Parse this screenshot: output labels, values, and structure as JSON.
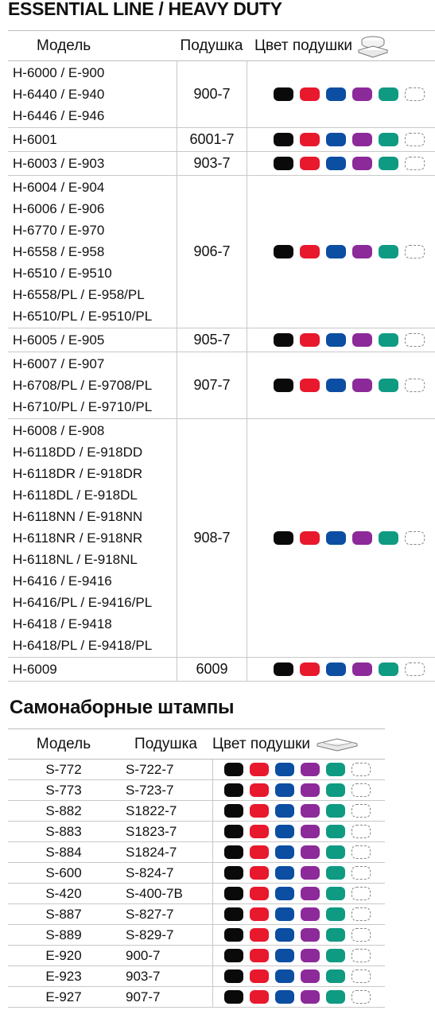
{
  "section1": {
    "title": "ESSENTIAL LINE / HEAVY DUTY",
    "headers": {
      "model": "Модель",
      "pad": "Подушка",
      "color": "Цвет подушки"
    },
    "pad_icon": "stamp-pad-icon",
    "rows": [
      {
        "models": [
          "H-6000 / E-900",
          "H-6440 / E-940",
          "H-6446 / E-946"
        ],
        "pad": "900-7"
      },
      {
        "models": [
          "H-6001"
        ],
        "pad": "6001-7"
      },
      {
        "models": [
          "H-6003 / E-903"
        ],
        "pad": "903-7"
      },
      {
        "models": [
          "H-6004 / E-904",
          "H-6006 / E-906",
          "H-6770 / E-970",
          "H-6558 / E-958",
          "H-6510 / E-9510",
          "H-6558/PL / E-958/PL",
          "H-6510/PL / E-9510/PL"
        ],
        "pad": "906-7"
      },
      {
        "models": [
          "H-6005 / E-905"
        ],
        "pad": "905-7"
      },
      {
        "models": [
          "H-6007 / E-907",
          "H-6708/PL / E-9708/PL",
          "H-6710/PL / E-9710/PL"
        ],
        "pad": "907-7"
      },
      {
        "models": [
          "H-6008 / E-908",
          "H-6118DD / E-918DD",
          "H-6118DR / E-918DR",
          "H-6118DL / E-918DL",
          "H-6118NN / E-918NN",
          "H-6118NR / E-918NR",
          "H-6118NL / E-918NL",
          "H-6416 / E-9416",
          "H-6416/PL / E-9416/PL",
          "H-6418 / E-9418",
          "H-6418/PL / E-9418/PL"
        ],
        "pad": "908-7"
      },
      {
        "models": [
          "H-6009"
        ],
        "pad": "6009"
      }
    ]
  },
  "section2": {
    "title": "Самонаборные штампы",
    "headers": {
      "model": "Модель",
      "pad": "Подушка",
      "color": "Цвет подушки"
    },
    "pad_icon": "stamp-pad-icon",
    "rows": [
      {
        "model": "S-772",
        "pad": "S-722-7"
      },
      {
        "model": "S-773",
        "pad": "S-723-7"
      },
      {
        "model": "S-882",
        "pad": "S1822-7"
      },
      {
        "model": "S-883",
        "pad": "S1823-7"
      },
      {
        "model": "S-884",
        "pad": "S1824-7"
      },
      {
        "model": "S-600",
        "pad": "S-824-7"
      },
      {
        "model": "S-420",
        "pad": "S-400-7B"
      },
      {
        "model": "S-887",
        "pad": "S-827-7"
      },
      {
        "model": "S-889",
        "pad": "S-829-7"
      },
      {
        "model": "E-920",
        "pad": "900-7"
      },
      {
        "model": "E-923",
        "pad": "903-7"
      },
      {
        "model": "E-927",
        "pad": "907-7"
      }
    ]
  },
  "swatch_colors": [
    "#0a0a0a",
    "#e8182d",
    "#0b4ea2",
    "#8c2a9a",
    "#0f9a82",
    "empty"
  ]
}
